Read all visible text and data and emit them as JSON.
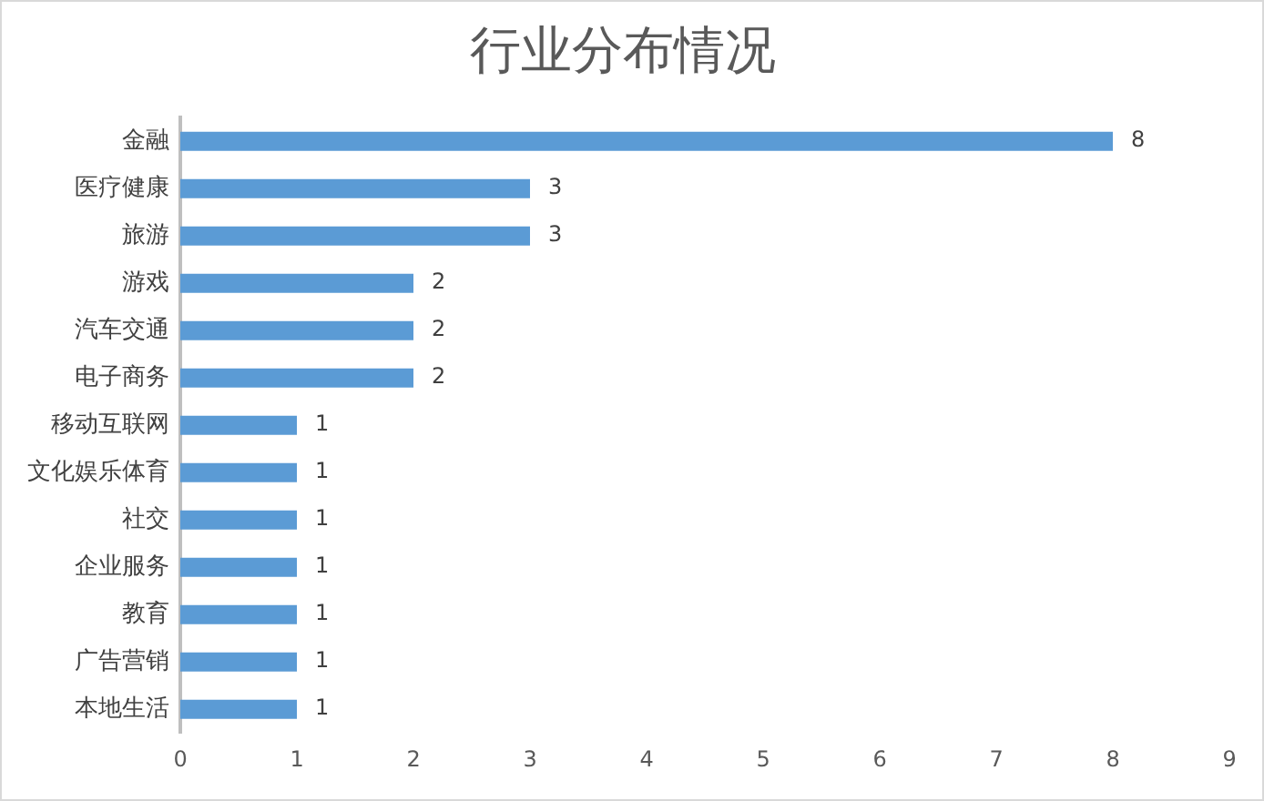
{
  "chart_data": {
    "type": "bar",
    "orientation": "horizontal",
    "title": "行业分布情况",
    "categories": [
      "金融",
      "医疗健康",
      "旅游",
      "游戏",
      "汽车交通",
      "电子商务",
      "移动互联网",
      "文化娱乐体育",
      "社交",
      "企业服务",
      "教育",
      "广告营销",
      "本地生活"
    ],
    "values": [
      8,
      3,
      3,
      2,
      2,
      2,
      1,
      1,
      1,
      1,
      1,
      1,
      1
    ],
    "color": "#5b9bd5",
    "xlim": [
      0,
      9
    ],
    "xticks": [
      0,
      1,
      2,
      3,
      4,
      5,
      6,
      7,
      8,
      9
    ],
    "grid": false,
    "legend": false,
    "data_labels": true
  }
}
